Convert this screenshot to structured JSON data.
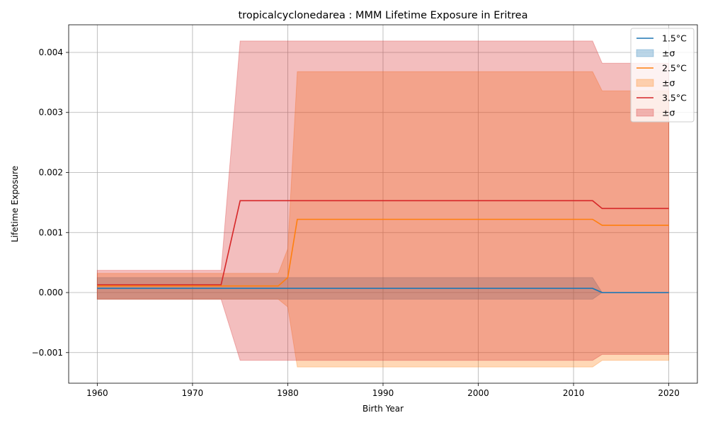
{
  "chart_data": {
    "type": "area",
    "title": "tropicalcyclonedarea : MMM Lifetime Exposure in Eritrea",
    "xlabel": "Birth Year",
    "ylabel": "Lifetime Exposure",
    "xlim": [
      1957,
      2023
    ],
    "ylim": [
      -0.00151,
      0.00446
    ],
    "x_ticks": [
      1960,
      1970,
      1980,
      1990,
      2000,
      2010,
      2020
    ],
    "x_tick_labels": [
      "1960",
      "1970",
      "1980",
      "1990",
      "2000",
      "2010",
      "2020"
    ],
    "y_ticks": [
      -0.001,
      0.0,
      0.001,
      0.002,
      0.003,
      0.004
    ],
    "y_tick_labels": [
      "−0.001",
      "0.000",
      "0.001",
      "0.002",
      "0.003",
      "0.004"
    ],
    "grid": true,
    "legend_position": "top-right",
    "series": [
      {
        "name": "1.5°C",
        "band_label": "±σ",
        "color": "#1f77b4",
        "band_color": "#1f77b4",
        "x": [
          1960,
          2012,
          2013,
          2020
        ],
        "y": [
          7e-05,
          7e-05,
          0.0,
          0.0
        ],
        "lower": [
          -0.00011,
          -0.00011,
          0.0,
          0.0
        ],
        "upper": [
          0.00025,
          0.00025,
          0.0,
          0.0
        ]
      },
      {
        "name": "2.5°C",
        "band_label": "±σ",
        "color": "#ff7f0e",
        "band_color": "#ff7f0e",
        "x": [
          1960,
          1979,
          1980,
          1981,
          2012,
          2013,
          2020
        ],
        "y": [
          0.00011,
          0.00011,
          0.00025,
          0.00122,
          0.00122,
          0.00112,
          0.00112
        ],
        "lower": [
          -0.00011,
          -0.00011,
          -0.00024,
          -0.00124,
          -0.00124,
          -0.00113,
          -0.00113
        ],
        "upper": [
          0.00032,
          0.00032,
          0.00073,
          0.00368,
          0.00368,
          0.00336,
          0.00336
        ]
      },
      {
        "name": "3.5°C",
        "band_label": "±σ",
        "color": "#d62728",
        "band_color": "#d62728",
        "x": [
          1960,
          1973,
          1975,
          2012,
          2013,
          2020
        ],
        "y": [
          0.00013,
          0.00013,
          0.00153,
          0.00153,
          0.0014,
          0.0014
        ],
        "lower": [
          -0.00011,
          -0.00011,
          -0.00113,
          -0.00113,
          -0.00103,
          -0.00103
        ],
        "upper": [
          0.00037,
          0.00037,
          0.00419,
          0.00419,
          0.00382,
          0.00382
        ]
      }
    ]
  }
}
